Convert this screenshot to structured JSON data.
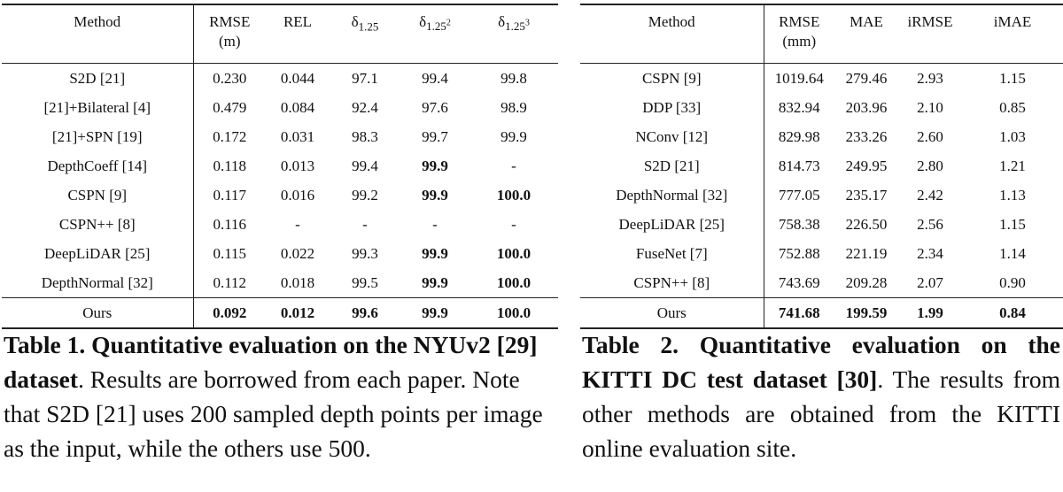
{
  "tables": [
    {
      "headers": [
        "Method",
        {
          "lines": [
            "RMSE",
            "(m)"
          ]
        },
        "REL",
        {
          "main": "δ",
          "sub": "1.25"
        },
        {
          "main": "δ",
          "sub": "1.25",
          "sup": "2"
        },
        {
          "main": "δ",
          "sub": "1.25",
          "sup": "3"
        }
      ],
      "rows": [
        [
          "S2D [21]",
          "0.230",
          "0.044",
          "97.1",
          "99.4",
          "99.8"
        ],
        [
          "[21]+Bilateral [4]",
          "0.479",
          "0.084",
          "92.4",
          "97.6",
          "98.9"
        ],
        [
          "[21]+SPN [19]",
          "0.172",
          "0.031",
          "98.3",
          "99.7",
          "99.9"
        ],
        [
          "DepthCoeff [14]",
          "0.118",
          "0.013",
          "99.4",
          {
            "text": "99.9",
            "bold": true
          },
          "-"
        ],
        [
          "CSPN [9]",
          "0.117",
          "0.016",
          "99.2",
          {
            "text": "99.9",
            "bold": true
          },
          {
            "text": "100.0",
            "bold": true
          }
        ],
        [
          "CSPN++ [8]",
          "0.116",
          "-",
          "-",
          "-",
          "-"
        ],
        [
          "DeepLiDAR [25]",
          "0.115",
          "0.022",
          "99.3",
          {
            "text": "99.9",
            "bold": true
          },
          {
            "text": "100.0",
            "bold": true
          }
        ],
        [
          "DepthNormal [32]",
          "0.112",
          "0.018",
          "99.5",
          {
            "text": "99.9",
            "bold": true
          },
          {
            "text": "100.0",
            "bold": true
          }
        ],
        [
          "Ours",
          {
            "text": "0.092",
            "bold": true
          },
          {
            "text": "0.012",
            "bold": true
          },
          {
            "text": "99.6",
            "bold": true
          },
          {
            "text": "99.9",
            "bold": true
          },
          {
            "text": "100.0",
            "bold": true
          }
        ]
      ],
      "caption": {
        "bold": "Table 1. Quantitative evaluation on the NYUv2 [29] dataset",
        "rest": ". Results are borrowed from each paper. Note that S2D [21] uses 200 sampled depth points per image as the input, while the others use 500."
      }
    },
    {
      "headers": [
        "Method",
        {
          "lines": [
            "RMSE",
            "(mm)"
          ]
        },
        "MAE",
        "iRMSE",
        "iMAE"
      ],
      "rows": [
        [
          "CSPN [9]",
          "1019.64",
          "279.46",
          "2.93",
          "1.15"
        ],
        [
          "DDP [33]",
          "832.94",
          "203.96",
          "2.10",
          "0.85"
        ],
        [
          "NConv [12]",
          "829.98",
          "233.26",
          "2.60",
          "1.03"
        ],
        [
          "S2D [21]",
          "814.73",
          "249.95",
          "2.80",
          "1.21"
        ],
        [
          "DepthNormal [32]",
          "777.05",
          "235.17",
          "2.42",
          "1.13"
        ],
        [
          "DeepLiDAR [25]",
          "758.38",
          "226.50",
          "2.56",
          "1.15"
        ],
        [
          "FuseNet [7]",
          "752.88",
          "221.19",
          "2.34",
          "1.14"
        ],
        [
          "CSPN++ [8]",
          "743.69",
          "209.28",
          "2.07",
          "0.90"
        ],
        [
          "Ours",
          {
            "text": "741.68",
            "bold": true
          },
          {
            "text": "199.59",
            "bold": true
          },
          {
            "text": "1.99",
            "bold": true
          },
          {
            "text": "0.84",
            "bold": true
          }
        ]
      ],
      "caption": {
        "bold": "Table 2. Quantitative evaluation on the KITTI DC test dataset [30]",
        "rest": ". The results from other methods are obtained from the KITTI online evaluation site."
      }
    }
  ]
}
